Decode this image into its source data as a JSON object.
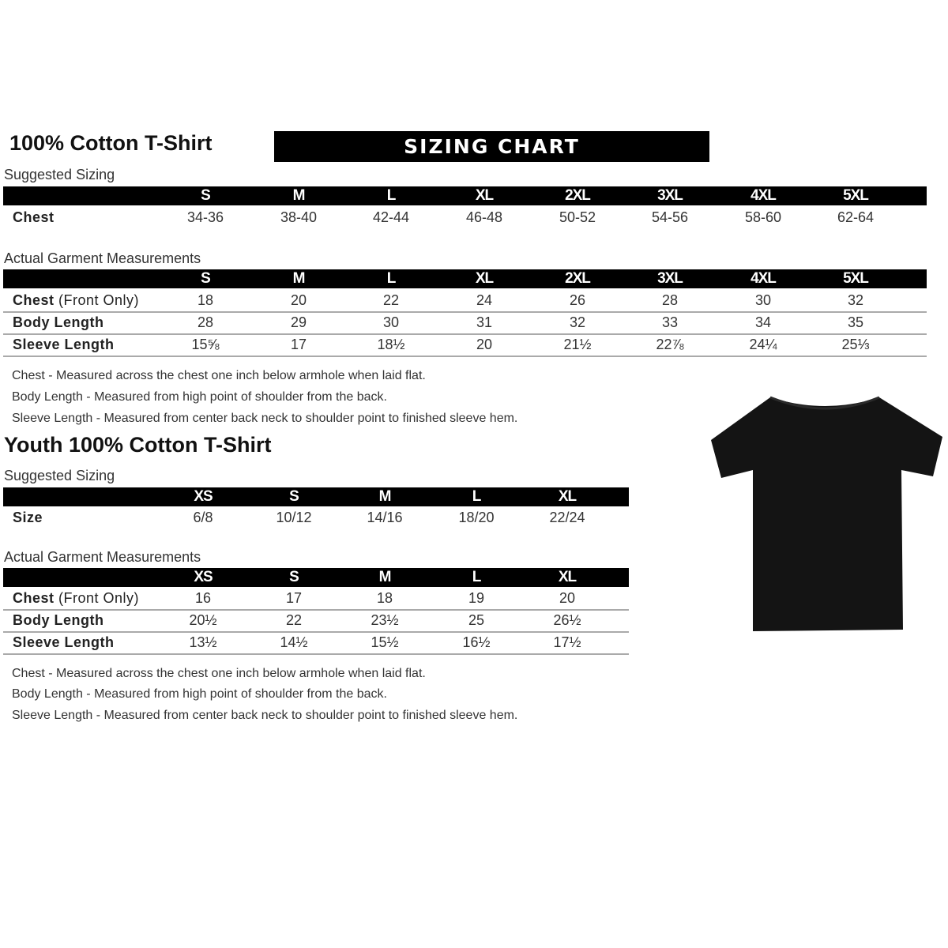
{
  "adult": {
    "title": "100% Cotton T-Shirt",
    "banner": "SIZING CHART",
    "suggested_label": "Suggested Sizing",
    "sizes": [
      "S",
      "M",
      "L",
      "XL",
      "2XL",
      "3XL",
      "4XL",
      "5XL"
    ],
    "suggested_rows": [
      {
        "label": "Chest",
        "values": [
          "34-36",
          "38-40",
          "42-44",
          "46-48",
          "50-52",
          "54-56",
          "58-60",
          "62-64"
        ]
      }
    ],
    "actual_label": "Actual Garment Measurements",
    "actual_rows": [
      {
        "label": "Chest",
        "label_suffix": " (Front Only)",
        "values": [
          "18",
          "20",
          "22",
          "24",
          "26",
          "28",
          "30",
          "32"
        ]
      },
      {
        "label": "Body Length",
        "values": [
          "28",
          "29",
          "30",
          "31",
          "32",
          "33",
          "34",
          "35"
        ]
      },
      {
        "label": "Sleeve Length",
        "values": [
          "15⅝",
          "17",
          "18½",
          "20",
          "21½",
          "22⅞",
          "24¼",
          "25⅓"
        ]
      }
    ],
    "notes": [
      "Chest - Measured across the chest one inch below armhole when laid flat.",
      "Body Length - Measured from high point of shoulder from the back.",
      "Sleeve Length - Measured from center back neck to shoulder point to finished sleeve hem."
    ]
  },
  "youth": {
    "title": "Youth 100% Cotton T-Shirt",
    "suggested_label": "Suggested Sizing",
    "sizes": [
      "XS",
      "S",
      "M",
      "L",
      "XL"
    ],
    "suggested_rows": [
      {
        "label": "Size",
        "values": [
          "6/8",
          "10/12",
          "14/16",
          "18/20",
          "22/24"
        ]
      }
    ],
    "actual_label": "Actual Garment Measurements",
    "actual_rows": [
      {
        "label": "Chest",
        "label_suffix": " (Front Only)",
        "values": [
          "16",
          "17",
          "18",
          "19",
          "20"
        ]
      },
      {
        "label": "Body Length",
        "values": [
          "20½",
          "22",
          "23½",
          "25",
          "26½"
        ]
      },
      {
        "label": "Sleeve Length",
        "values": [
          "13½",
          "14½",
          "15½",
          "16½",
          "17½"
        ]
      }
    ],
    "notes": [
      "Chest - Measured across the chest one inch below armhole when laid flat.",
      "Body Length - Measured from high point of shoulder from the back.",
      "Sleeve Length - Measured from center back neck to shoulder point to finished sleeve hem."
    ]
  },
  "image": {
    "icon": "tshirt-icon",
    "color": "#141414"
  }
}
